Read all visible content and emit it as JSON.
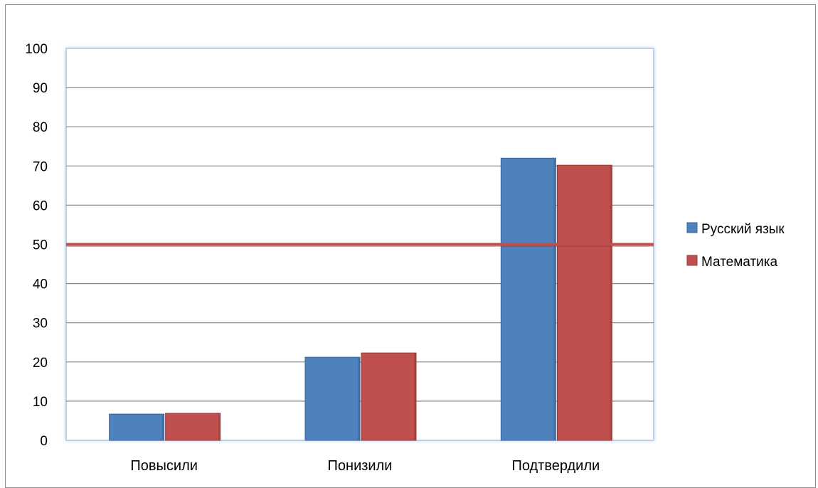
{
  "chart_data": {
    "type": "bar",
    "categories": [
      "Повысили",
      "Понизили",
      "Подтвердили"
    ],
    "series": [
      {
        "name": "Русский язык",
        "values": [
          6.7,
          21.2,
          72
        ],
        "color": "#4F81BD"
      },
      {
        "name": "Математика",
        "values": [
          6.9,
          22.3,
          70.2
        ],
        "color": "#C0504D"
      }
    ],
    "reference_line": {
      "value": 50,
      "color": "#C0504D"
    },
    "ylim": [
      0,
      100
    ],
    "yticks": [
      "0",
      "10",
      "20",
      "30",
      "40",
      "50",
      "60",
      "70",
      "80",
      "90",
      "100"
    ],
    "grid": true,
    "legend_position": "right",
    "title": "",
    "xlabel": "",
    "ylabel": ""
  }
}
